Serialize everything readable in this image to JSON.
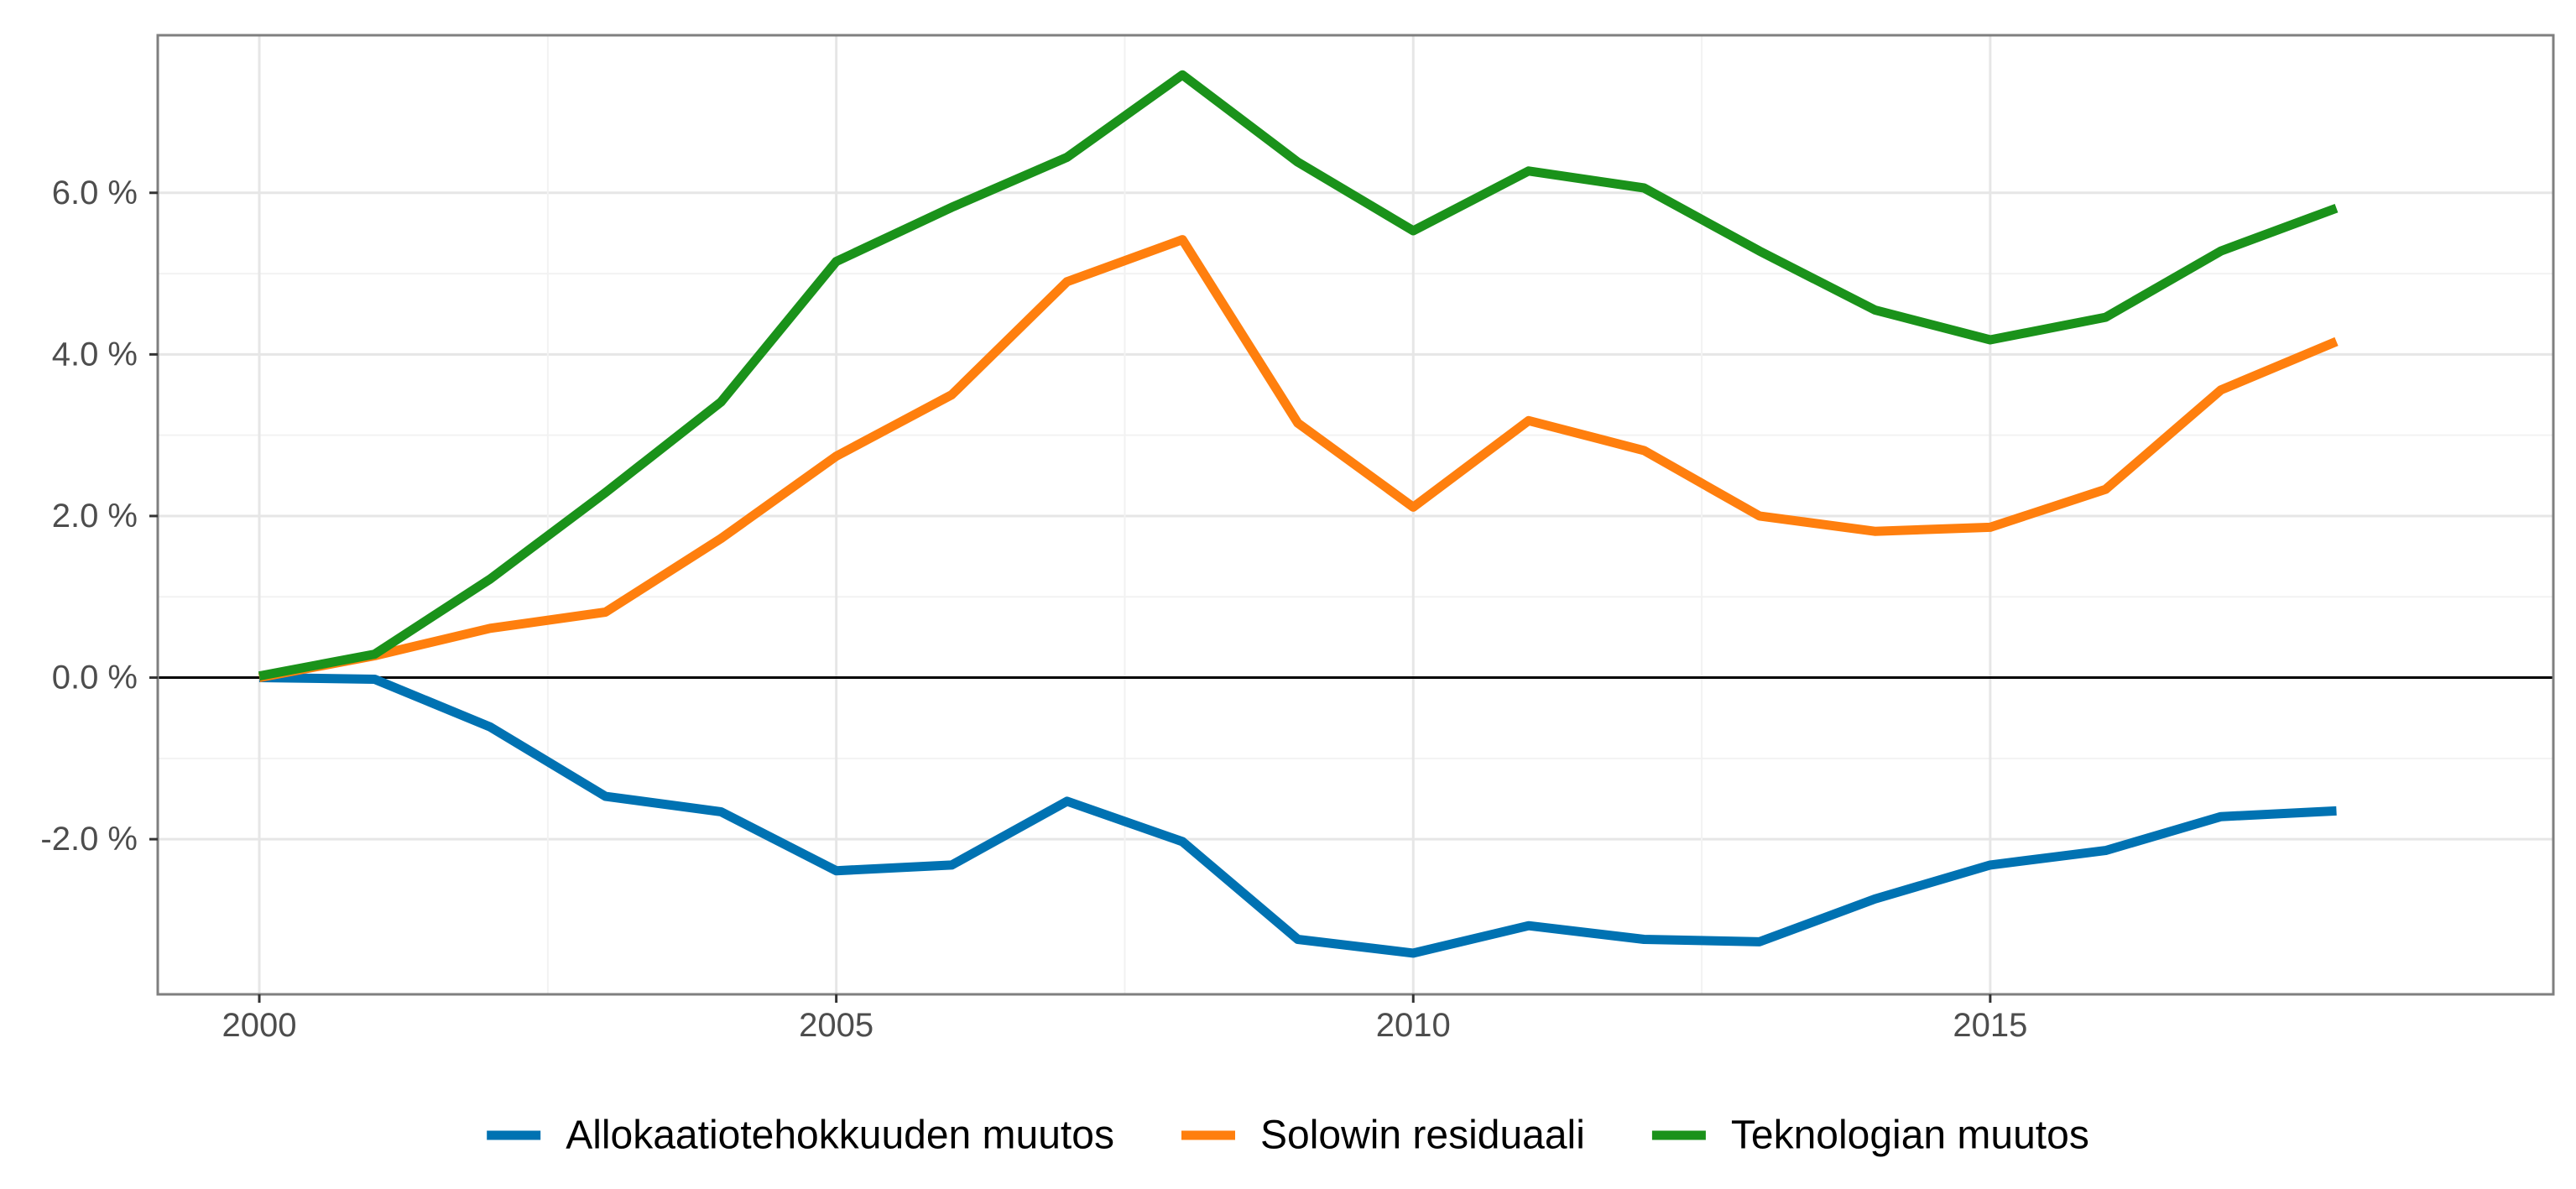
{
  "chart_data": {
    "type": "line",
    "title": "",
    "xlabel": "",
    "ylabel": "",
    "x": [
      2000,
      2001,
      2002,
      2003,
      2004,
      2005,
      2006,
      2007,
      2008,
      2009,
      2010,
      2011,
      2012,
      2013,
      2014,
      2015,
      2016,
      2017,
      2018
    ],
    "xlim": [
      1999.12,
      2019.88
    ],
    "ylim": [
      -3.92,
      7.95
    ],
    "x_ticks": [
      {
        "value": 2000,
        "label": "2000"
      },
      {
        "value": 2005,
        "label": "2005"
      },
      {
        "value": 2010,
        "label": "2010"
      },
      {
        "value": 2015,
        "label": "2015"
      }
    ],
    "y_ticks": [
      {
        "value": -2,
        "label": "-2.0 %"
      },
      {
        "value": 0,
        "label": "0.0 %"
      },
      {
        "value": 2,
        "label": "2.0 %"
      },
      {
        "value": 4,
        "label": "4.0 %"
      },
      {
        "value": 6,
        "label": "6.0 %"
      }
    ],
    "grid": true,
    "zero_line": true,
    "legend": {
      "position": "bottom"
    },
    "series": [
      {
        "name": "Allokaatiotehokkuuden muutos",
        "color": "#0072B2",
        "values": [
          0.0,
          -0.02,
          -0.61,
          -1.47,
          -1.66,
          -2.39,
          -2.32,
          -1.53,
          -2.03,
          -3.24,
          -3.41,
          -3.07,
          -3.24,
          -3.27,
          -2.74,
          -2.32,
          -2.14,
          -1.72,
          -1.65
        ]
      },
      {
        "name": "Solowin residuaali",
        "color": "#FF7F0E",
        "values": [
          0.0,
          0.27,
          0.61,
          0.81,
          1.72,
          2.74,
          3.5,
          4.9,
          5.42,
          3.15,
          2.11,
          3.18,
          2.81,
          2.0,
          1.81,
          1.86,
          2.33,
          3.56,
          4.16
        ]
      },
      {
        "name": "Teknologian muutos",
        "color": "#1A921A",
        "values": [
          0.02,
          0.29,
          1.22,
          2.29,
          3.41,
          5.15,
          5.82,
          6.44,
          7.46,
          6.38,
          5.53,
          6.27,
          6.06,
          5.28,
          4.55,
          4.18,
          4.46,
          5.28,
          5.81
        ]
      }
    ]
  }
}
